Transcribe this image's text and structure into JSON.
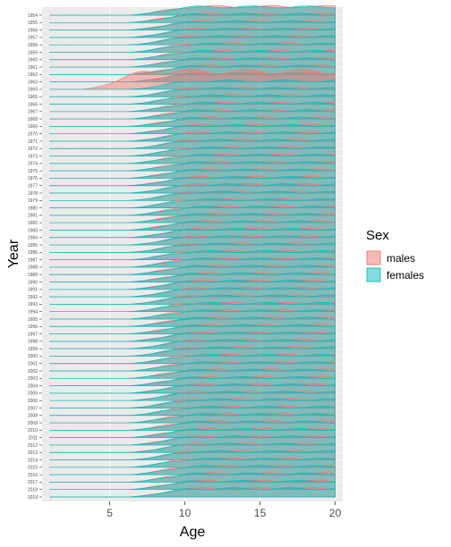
{
  "chart_data": {
    "type": "area",
    "subtype": "ridgeline-density",
    "xlabel": "Age",
    "ylabel": "Year",
    "xlim": [
      0.5,
      20.5
    ],
    "x_ticks": [
      5,
      10,
      15,
      20
    ],
    "x_tick_labels": [
      "5",
      "10",
      "15",
      "20"
    ],
    "y_categories": [
      "1954",
      "1955",
      "1956",
      "1957",
      "1958",
      "1959",
      "1960",
      "1961",
      "1962",
      "1963",
      "1964",
      "1965",
      "1966",
      "1967",
      "1968",
      "1969",
      "1970",
      "1971",
      "1972",
      "1973",
      "1974",
      "1975",
      "1976",
      "1977",
      "1978",
      "1979",
      "1980",
      "1981",
      "1982",
      "1983",
      "1984",
      "1985",
      "1986",
      "1987",
      "1988",
      "1989",
      "1990",
      "1991",
      "1992",
      "1993",
      "1994",
      "1995",
      "1996",
      "1997",
      "1998",
      "1999",
      "2000",
      "2001",
      "2002",
      "2003",
      "2004",
      "2005",
      "2006",
      "2007",
      "2008",
      "2009",
      "2010",
      "2011",
      "2012",
      "2013",
      "2014",
      "2015",
      "2016",
      "2017",
      "2018",
      "2019"
    ],
    "grid": true,
    "background": "#ebebeb",
    "legend": {
      "title": "Sex",
      "position": "right",
      "entries": [
        {
          "label": "males",
          "fill": "#f8766d",
          "stroke": "#f8766d"
        },
        {
          "label": "females",
          "fill": "#00bfc4",
          "stroke": "#00bfc4"
        }
      ]
    },
    "series": [
      {
        "name": "males",
        "color": "#f8766d",
        "distribution_start_age": [
          6,
          6,
          6,
          6,
          6,
          6,
          6,
          6,
          6,
          6,
          3,
          6,
          6,
          6,
          6,
          6,
          6,
          6,
          6,
          6,
          6,
          6,
          6,
          6,
          6,
          6,
          6,
          6,
          6,
          6,
          6,
          6,
          6,
          6,
          6,
          6,
          6,
          6,
          6,
          6,
          6,
          6,
          6,
          6,
          6,
          6,
          6,
          6,
          6,
          6,
          6,
          6,
          6,
          6,
          6,
          6,
          6,
          6,
          6,
          6,
          6,
          6,
          6,
          6,
          6,
          6
        ]
      },
      {
        "name": "females",
        "color": "#00bfc4",
        "distribution_start_age": [
          6,
          6,
          6,
          6,
          6,
          6,
          6,
          6,
          6,
          6,
          6,
          6,
          6,
          6,
          6,
          6,
          6,
          6,
          6,
          6,
          6,
          6,
          6,
          6,
          6,
          6,
          6,
          6,
          6,
          6,
          6,
          6,
          6,
          6,
          6,
          6,
          6,
          6,
          6,
          6,
          6,
          6,
          6,
          6,
          6,
          6,
          6,
          6,
          6,
          6,
          6,
          6,
          6,
          6,
          6,
          6,
          6,
          6,
          6,
          6,
          6,
          6,
          6,
          6,
          6,
          6
        ]
      }
    ]
  }
}
